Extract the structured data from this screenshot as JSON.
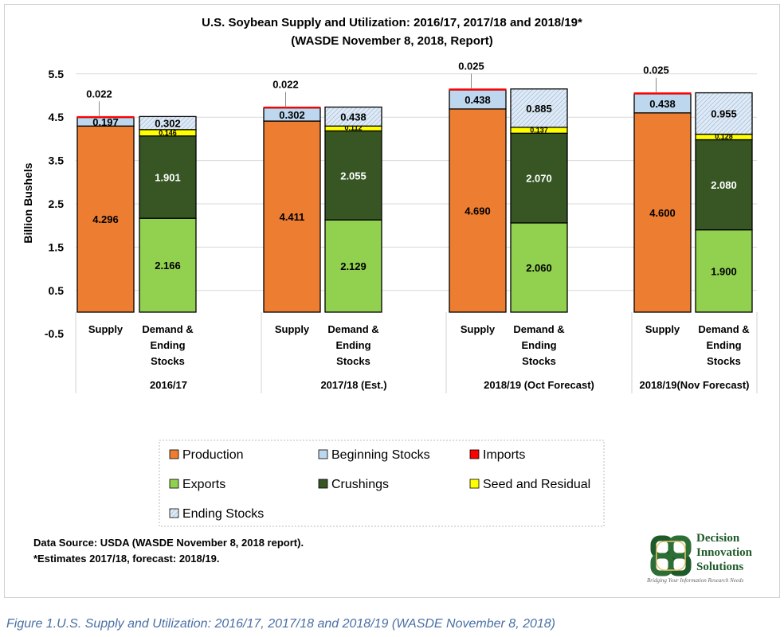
{
  "chart_data": {
    "type": "bar",
    "stacked": true,
    "title": "U.S. Soybean Supply and Utilization: 2016/17, 2017/18 and 2018/19*",
    "subtitle": "(WASDE November 8, 2018, Report)",
    "ylabel": "Billion Bushels",
    "ylim": [
      -0.5,
      5.5
    ],
    "yticks": [
      "5.5",
      "4.5",
      "3.5",
      "2.5",
      "1.5",
      "0.5",
      "-0.5"
    ],
    "grid": true,
    "legend_position": "bottom",
    "sub_categories": {
      "supply": "Supply",
      "demand": [
        "Demand &",
        "Ending",
        "Stocks"
      ]
    },
    "groups": [
      {
        "label": "2016/17",
        "supply": {
          "Production": 4.296,
          "Beginning Stocks": 0.197,
          "Imports": 0.022
        },
        "demand": {
          "Exports": 2.166,
          "Crushings": 1.901,
          "Seed and Residual": 0.146,
          "Ending Stocks": 0.302
        }
      },
      {
        "label": "2017/18 (Est.)",
        "supply": {
          "Production": 4.411,
          "Beginning Stocks": 0.302,
          "Imports": 0.022
        },
        "demand": {
          "Exports": 2.129,
          "Crushings": 2.055,
          "Seed and Residual": 0.112,
          "Ending Stocks": 0.438
        }
      },
      {
        "label": "2018/19 (Oct Forecast)",
        "supply": {
          "Production": 4.69,
          "Beginning Stocks": 0.438,
          "Imports": 0.025
        },
        "demand": {
          "Exports": 2.06,
          "Crushings": 2.07,
          "Seed and Residual": 0.137,
          "Ending Stocks": 0.885
        }
      },
      {
        "label": "2018/19(Nov Forecast)",
        "supply": {
          "Production": 4.6,
          "Beginning Stocks": 0.438,
          "Imports": 0.025
        },
        "demand": {
          "Exports": 1.9,
          "Crushings": 2.08,
          "Seed and Residual": 0.128,
          "Ending Stocks": 0.955
        }
      }
    ],
    "series": [
      {
        "name": "Production",
        "color": "#ED7D31"
      },
      {
        "name": "Beginning Stocks",
        "color": "#BDD7EE"
      },
      {
        "name": "Imports",
        "color": "#FF0000"
      },
      {
        "name": "Exports",
        "color": "#92D050"
      },
      {
        "name": "Crushings",
        "color": "#375623"
      },
      {
        "name": "Seed and Residual",
        "color": "#FFFF00"
      },
      {
        "name": "Ending Stocks",
        "color": "#DEEAF6",
        "pattern": "hatched"
      }
    ]
  },
  "notes": [
    "Data Source: USDA (WASDE November 8, 2018 report).",
    "*Estimates 2017/18, forecast: 2018/19."
  ],
  "logo": {
    "lines": [
      "Decision",
      "Innovation",
      "Solutions"
    ],
    "tagline": "Bridging Your Information Research Needs"
  },
  "caption": "Figure 1.U.S. Supply and Utilization: 2016/17, 2017/18 and 2018/19 (WASDE November 8, 2018)"
}
